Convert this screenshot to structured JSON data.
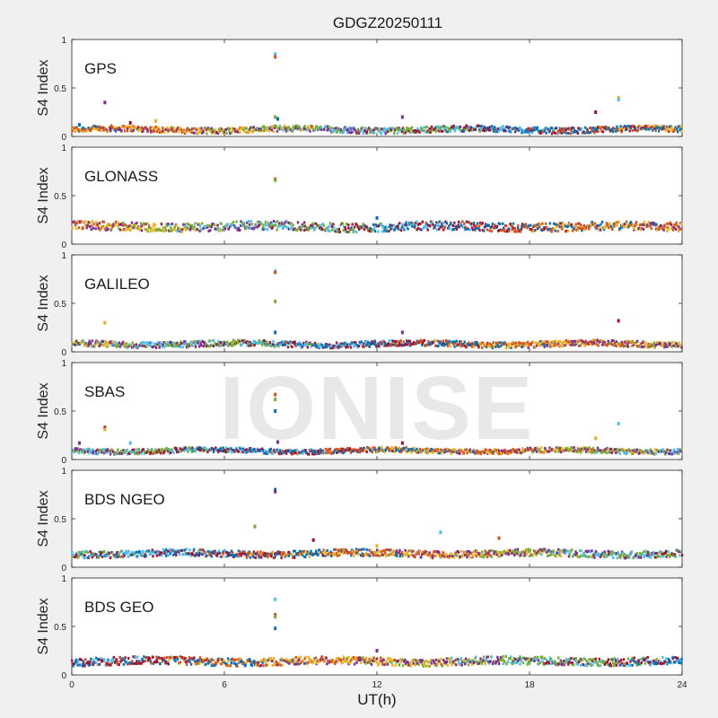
{
  "figure": {
    "title": "GDGZ20250111",
    "xlabel": "UT(h)",
    "watermark": "IONISE"
  },
  "palette": [
    "#0072BD",
    "#D95319",
    "#EDB120",
    "#7E2F8E",
    "#77AC30",
    "#4DBEEE",
    "#A2142F"
  ],
  "chart_data": [
    {
      "type": "scatter",
      "panel": "GPS",
      "label": "GPS",
      "ylabel": "S4 Index",
      "xlim": [
        0,
        24
      ],
      "ylim": [
        0,
        1
      ],
      "xticks": [
        0,
        6,
        12,
        18,
        24
      ],
      "yticks": [
        0,
        0.5,
        1
      ],
      "baseline": 0.07,
      "noise": 0.03,
      "outliers": [
        [
          0.3,
          0.12
        ],
        [
          1.3,
          0.35
        ],
        [
          2.3,
          0.14
        ],
        [
          3.3,
          0.16
        ],
        [
          8.0,
          0.85
        ],
        [
          8.0,
          0.82
        ],
        [
          8.0,
          0.2
        ],
        [
          8.1,
          0.18
        ],
        [
          13.0,
          0.2
        ],
        [
          20.6,
          0.25
        ],
        [
          21.5,
          0.4
        ],
        [
          21.5,
          0.38
        ]
      ]
    },
    {
      "type": "scatter",
      "panel": "GLONASS",
      "label": "GLONASS",
      "ylabel": "S4 Index",
      "xlim": [
        0,
        24
      ],
      "ylim": [
        0,
        1
      ],
      "xticks": [
        0,
        6,
        12,
        18,
        24
      ],
      "yticks": [
        0,
        0.5,
        1
      ],
      "baseline": 0.18,
      "noise": 0.045,
      "outliers": [
        [
          8.0,
          0.67
        ],
        [
          8.0,
          0.66
        ],
        [
          12.0,
          0.27
        ]
      ]
    },
    {
      "type": "scatter",
      "panel": "GALILEO",
      "label": "GALILEO",
      "ylabel": "S4 Index",
      "xlim": [
        0,
        24
      ],
      "ylim": [
        0,
        1
      ],
      "xticks": [
        0,
        6,
        12,
        18,
        24
      ],
      "yticks": [
        0,
        0.5,
        1
      ],
      "baseline": 0.08,
      "noise": 0.03,
      "outliers": [
        [
          1.3,
          0.3
        ],
        [
          8.0,
          0.83
        ],
        [
          8.0,
          0.82
        ],
        [
          8.0,
          0.52
        ],
        [
          8.0,
          0.2
        ],
        [
          13.0,
          0.2
        ],
        [
          21.5,
          0.32
        ]
      ]
    },
    {
      "type": "scatter",
      "panel": "SBAS",
      "label": "SBAS",
      "ylabel": "S4 Index",
      "xlim": [
        0,
        24
      ],
      "ylim": [
        0,
        1
      ],
      "xticks": [
        0,
        6,
        12,
        18,
        24
      ],
      "yticks": [
        0,
        0.5,
        1
      ],
      "baseline": 0.09,
      "noise": 0.025,
      "outliers": [
        [
          0.3,
          0.17
        ],
        [
          1.3,
          0.33
        ],
        [
          1.3,
          0.31
        ],
        [
          2.3,
          0.17
        ],
        [
          8.0,
          0.67
        ],
        [
          8.0,
          0.62
        ],
        [
          8.0,
          0.5
        ],
        [
          8.1,
          0.18
        ],
        [
          13.0,
          0.17
        ],
        [
          20.6,
          0.22
        ],
        [
          21.5,
          0.37
        ]
      ]
    },
    {
      "type": "scatter",
      "panel": "BDS NGEO",
      "label": "BDS NGEO",
      "ylabel": "S4 Index",
      "xlim": [
        0,
        24
      ],
      "ylim": [
        0,
        1
      ],
      "xticks": [
        0,
        6,
        12,
        18,
        24
      ],
      "yticks": [
        0,
        0.5,
        1
      ],
      "baseline": 0.14,
      "noise": 0.035,
      "outliers": [
        [
          7.2,
          0.42
        ],
        [
          8.0,
          0.8
        ],
        [
          8.0,
          0.78
        ],
        [
          9.5,
          0.28
        ],
        [
          12.0,
          0.22
        ],
        [
          14.5,
          0.36
        ],
        [
          16.8,
          0.3
        ]
      ]
    },
    {
      "type": "scatter",
      "panel": "BDS GEO",
      "label": "BDS GEO",
      "ylabel": "S4 Index",
      "xlim": [
        0,
        24
      ],
      "ylim": [
        0,
        1
      ],
      "xticks": [
        0,
        6,
        12,
        18,
        24
      ],
      "yticks": [
        0,
        0.5,
        1
      ],
      "baseline": 0.14,
      "noise": 0.04,
      "outliers": [
        [
          8.0,
          0.78
        ],
        [
          8.0,
          0.62
        ],
        [
          8.0,
          0.6
        ],
        [
          8.0,
          0.48
        ],
        [
          12.0,
          0.25
        ]
      ]
    }
  ]
}
